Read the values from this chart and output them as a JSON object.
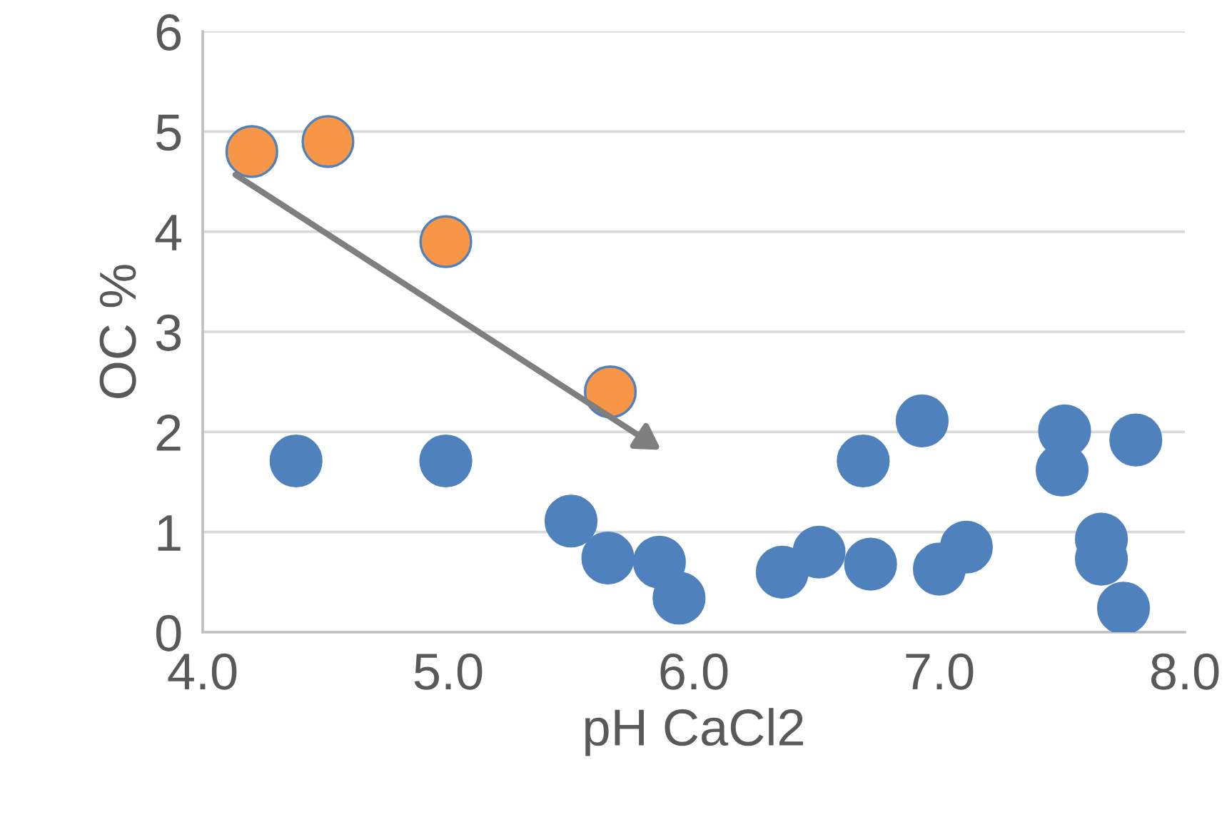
{
  "chart_data": {
    "type": "scatter",
    "xlabel": "pH CaCl2",
    "ylabel": "OC %",
    "series": [
      {
        "color": "#4f81bd",
        "x": [
          4.38,
          4.99,
          5.5,
          5.65,
          5.86,
          5.94,
          6.36,
          6.51,
          6.69,
          6.72,
          6.93,
          7.0,
          7.11,
          7.51,
          7.5,
          7.66,
          7.66,
          7.75,
          7.8
        ],
        "values": [
          1.71,
          1.71,
          1.11,
          0.74,
          0.7,
          0.34,
          0.6,
          0.8,
          1.71,
          0.68,
          2.11,
          0.63,
          0.85,
          2.01,
          1.62,
          0.73,
          0.93,
          0.24,
          1.92
        ]
      },
      {
        "color": "#f79646",
        "x": [
          4.2,
          4.51,
          4.99,
          5.66
        ],
        "values": [
          4.8,
          4.9,
          3.9,
          2.4
        ]
      }
    ],
    "xlim": [
      4,
      8
    ],
    "xticks": [
      {
        "value": 4,
        "label": "4.0"
      },
      {
        "value": 5,
        "label": "5.0"
      },
      {
        "value": 6,
        "label": "6.0"
      },
      {
        "value": 7,
        "label": "7.0"
      },
      {
        "value": 8,
        "label": "8.0"
      }
    ],
    "ylim": [
      0,
      6
    ],
    "yticks": [
      0,
      1,
      2,
      3,
      4,
      5,
      6
    ],
    "grid": "y",
    "marker": "circle",
    "legend": false
  }
}
